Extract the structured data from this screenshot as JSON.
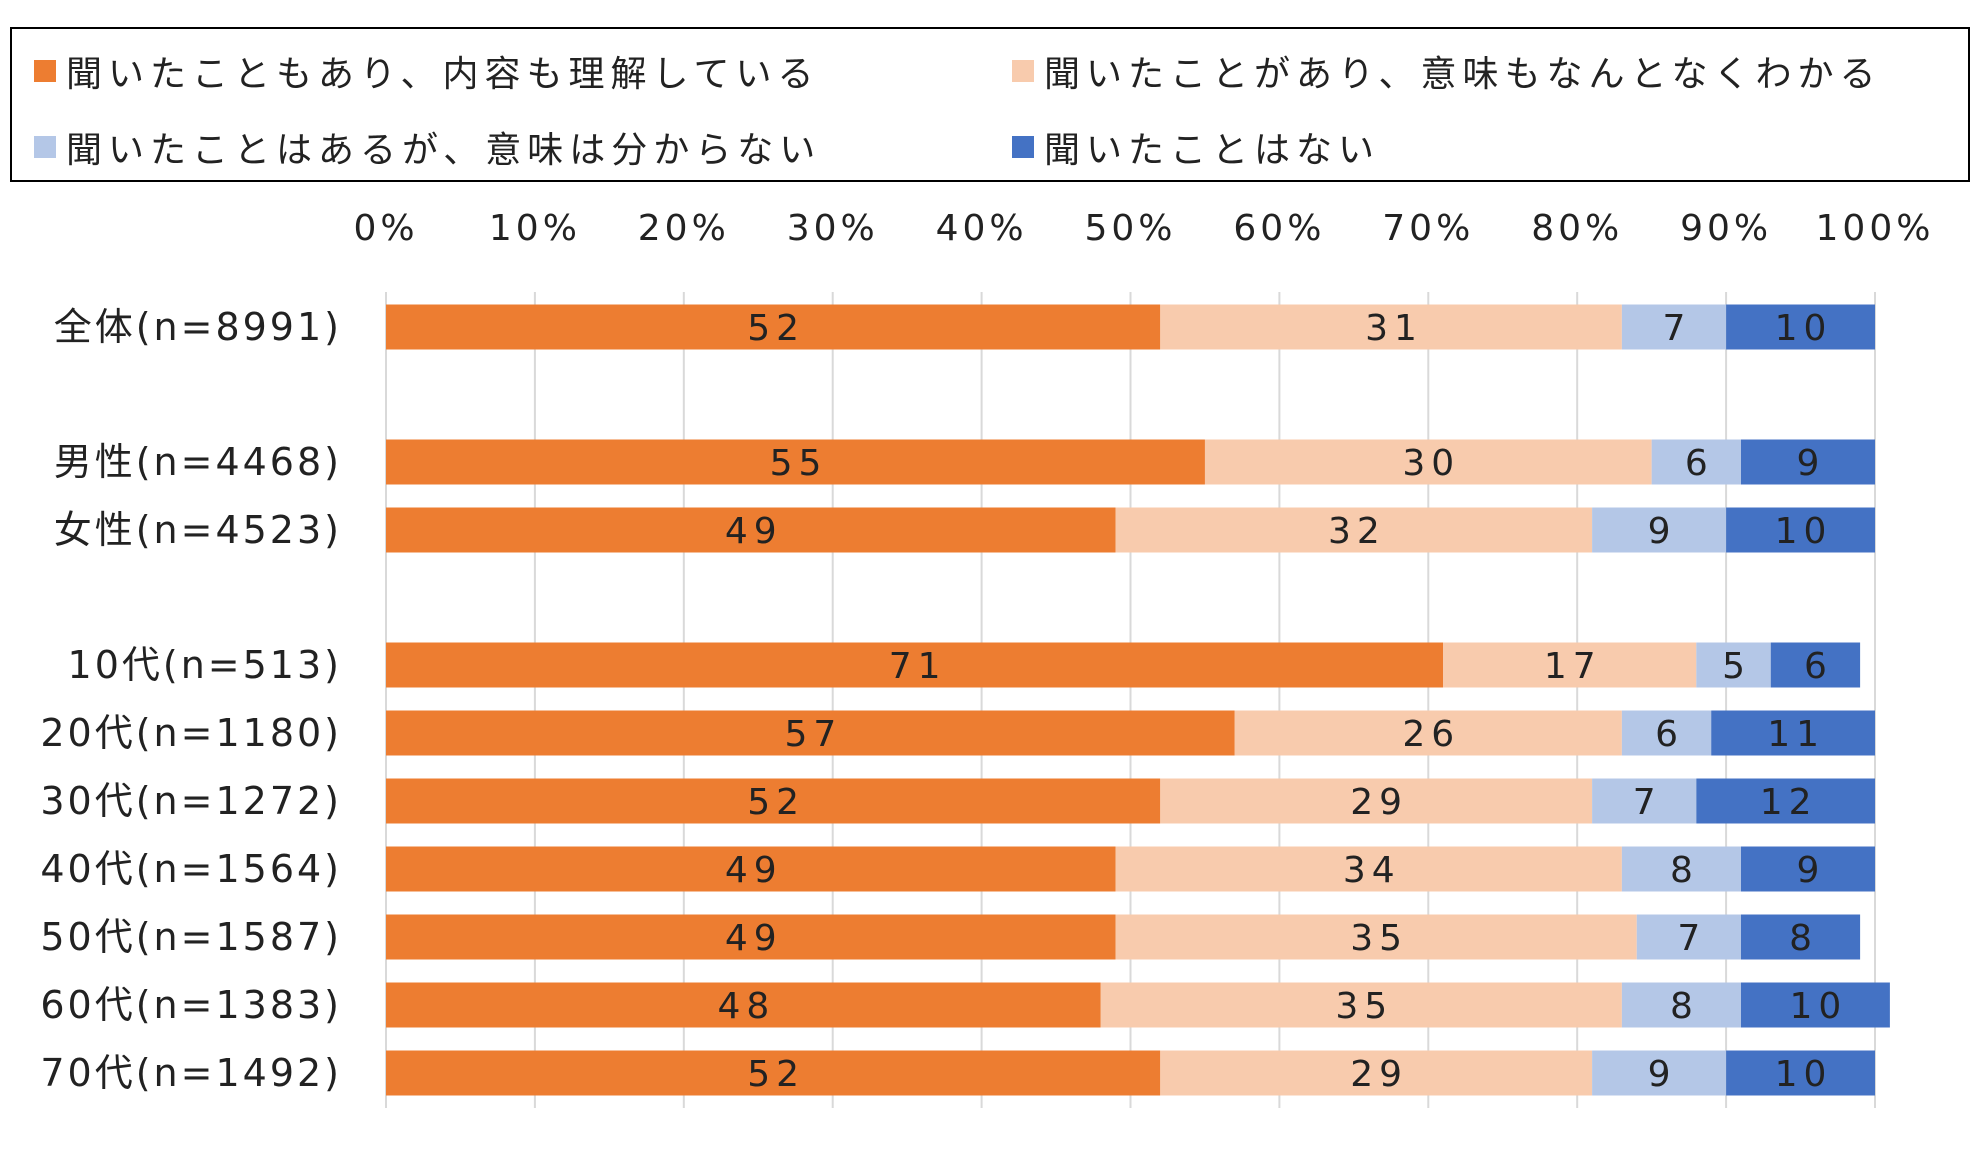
{
  "chart_data": {
    "type": "bar",
    "orientation": "horizontal",
    "stacked": true,
    "percent": true,
    "xlim": [
      0,
      100
    ],
    "xticks": [
      "0%",
      "10%",
      "20%",
      "30%",
      "40%",
      "50%",
      "60%",
      "70%",
      "80%",
      "90%",
      "100%"
    ],
    "grid": "vertical",
    "legend_position": "top",
    "categories": [
      "全体(n=8991)",
      "男性(n=4468)",
      "女性(n=4523)",
      "10代(n=513)",
      "20代(n=1180)",
      "30代(n=1272)",
      "40代(n=1564)",
      "50代(n=1587)",
      "60代(n=1383)",
      "70代(n=1492)"
    ],
    "series": [
      {
        "name": "聞いたこともあり、内容も理解している",
        "color": "#ED7D31",
        "values": [
          52,
          55,
          49,
          71,
          57,
          52,
          49,
          49,
          48,
          52
        ]
      },
      {
        "name": "聞いたことがあり、意味もなんとなくわかる",
        "color": "#F8CBAD",
        "values": [
          31,
          30,
          32,
          17,
          26,
          29,
          34,
          35,
          35,
          29
        ]
      },
      {
        "name": "聞いたことはあるが、意味は分からない",
        "color": "#B4C7E7",
        "values": [
          7,
          6,
          9,
          5,
          6,
          7,
          8,
          7,
          8,
          9
        ]
      },
      {
        "name": "聞いたことはない",
        "color": "#4472C4",
        "values": [
          10,
          9,
          10,
          6,
          11,
          12,
          9,
          8,
          10,
          10
        ]
      }
    ]
  }
}
